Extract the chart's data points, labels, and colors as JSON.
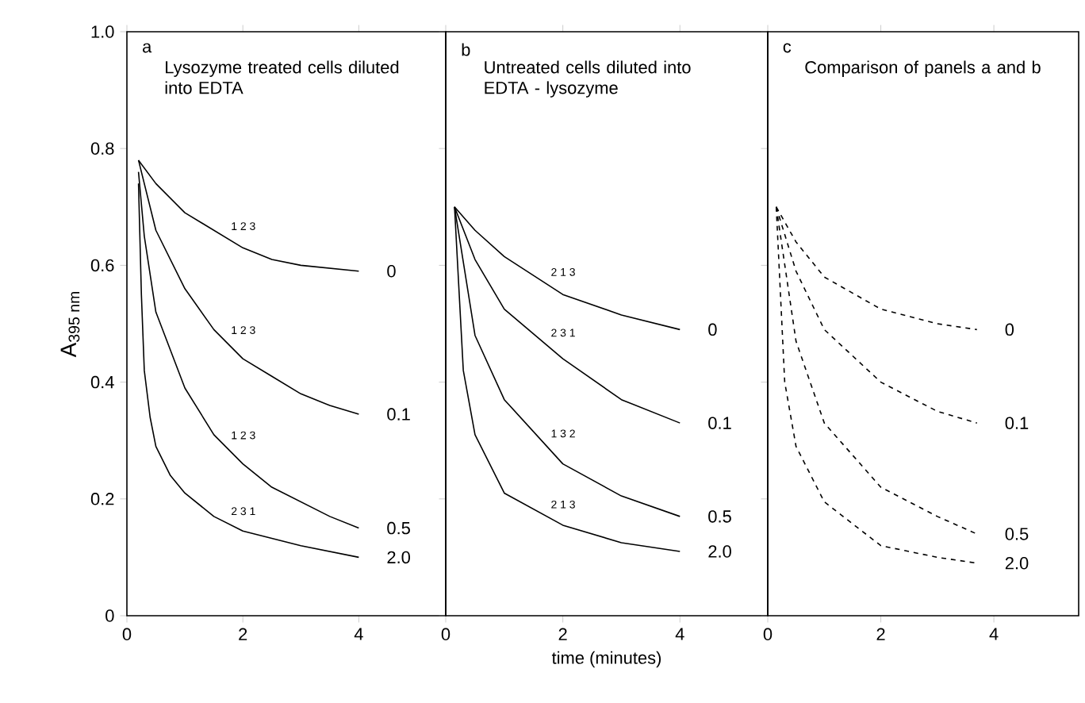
{
  "chart_data": [
    {
      "type": "line",
      "title": "a",
      "subtitle": "Lysozyme treated cells diluted into EDTA",
      "ylabel": "A$_{395 nm}$",
      "xlim": [
        0,
        5.5
      ],
      "ylim": [
        0,
        1.0
      ],
      "xticks": [
        0,
        2,
        4
      ],
      "yticks": [
        0,
        0.2,
        0.4,
        0.6,
        0.8,
        {
          "value": 1.0,
          "label": "1.0"
        }
      ],
      "line_style": "solid",
      "marker": "none",
      "series": [
        {
          "name": "0",
          "color": "#000000",
          "x": [
            0.2,
            0.5,
            1,
            1.5,
            2,
            2.5,
            3,
            4
          ],
          "values": [
            0.78,
            0.74,
            0.69,
            0.66,
            0.63,
            0.61,
            0.6,
            0.59
          ]
        },
        {
          "name": "0.1",
          "color": "#000000",
          "x": [
            0.2,
            0.5,
            1,
            1.5,
            2,
            2.5,
            3,
            3.5,
            4
          ],
          "values": [
            0.78,
            0.66,
            0.56,
            0.49,
            0.44,
            0.41,
            0.38,
            0.36,
            0.345
          ]
        },
        {
          "name": "0.5",
          "color": "#000000",
          "x": [
            0.2,
            0.3,
            0.5,
            1,
            1.5,
            2,
            2.5,
            3,
            3.5,
            4
          ],
          "values": [
            0.76,
            0.65,
            0.52,
            0.39,
            0.31,
            0.26,
            0.22,
            0.195,
            0.17,
            0.15
          ]
        },
        {
          "name": "2.0",
          "color": "#000000",
          "x": [
            0.2,
            0.25,
            0.3,
            0.4,
            0.5,
            0.75,
            1,
            1.5,
            2,
            3,
            4
          ],
          "values": [
            0.74,
            0.55,
            0.42,
            0.34,
            0.29,
            0.24,
            0.21,
            0.17,
            0.145,
            0.12,
            0.1
          ]
        }
      ],
      "annotations": [
        "1 2 3",
        "1 2 3",
        "1 2 3",
        "2 3 1"
      ]
    },
    {
      "type": "line",
      "title": "b",
      "subtitle": "Untreated cells diluted into EDTA - lysozyme",
      "xlabel": "time (minutes)",
      "xlim": [
        0,
        5.5
      ],
      "ylim": [
        0,
        1.0
      ],
      "xticks": [
        0,
        2,
        4
      ],
      "yticks": [
        0,
        0.2,
        0.4,
        0.6,
        0.8,
        1.0
      ],
      "tick_labels": "x",
      "line_style": "solid",
      "marker": "none",
      "series": [
        {
          "name": "0",
          "color": "#000000",
          "x": [
            0.15,
            0.5,
            1,
            2,
            3,
            4
          ],
          "values": [
            0.7,
            0.66,
            0.615,
            0.55,
            0.515,
            0.49
          ]
        },
        {
          "name": "0.1",
          "color": "#000000",
          "x": [
            0.15,
            0.5,
            1,
            2,
            3,
            4
          ],
          "values": [
            0.7,
            0.61,
            0.525,
            0.44,
            0.37,
            0.33
          ]
        },
        {
          "name": "0.5",
          "color": "#000000",
          "x": [
            0.15,
            0.5,
            1,
            2,
            3,
            4
          ],
          "values": [
            0.7,
            0.48,
            0.37,
            0.26,
            0.205,
            0.17
          ]
        },
        {
          "name": "2.0",
          "color": "#000000",
          "x": [
            0.15,
            0.3,
            0.5,
            1,
            2,
            3,
            4
          ],
          "values": [
            0.7,
            0.42,
            0.31,
            0.21,
            0.155,
            0.125,
            0.11
          ]
        }
      ],
      "annotations": [
        "2 1 3",
        "2 3 1",
        "1 3 2",
        "2 1 3"
      ]
    },
    {
      "type": "line",
      "title": "c",
      "subtitle": "Comparison of panels a and b",
      "xlim": [
        0,
        5.5
      ],
      "ylim": [
        0,
        1.0
      ],
      "xticks": [
        0,
        2,
        4
      ],
      "yticks": [
        0,
        0.2,
        0.4,
        0.6,
        0.8,
        1.0
      ],
      "tick_labels": "x",
      "line_style": "dashed",
      "marker": "none",
      "series": [
        {
          "name": "0",
          "color": "#000000",
          "x": [
            0.15,
            0.5,
            1,
            2,
            3,
            3.7
          ],
          "values": [
            0.7,
            0.64,
            0.58,
            0.525,
            0.5,
            0.49
          ]
        },
        {
          "name": "0.1",
          "color": "#000000",
          "x": [
            0.15,
            0.5,
            1,
            2,
            3,
            3.7
          ],
          "values": [
            0.7,
            0.59,
            0.49,
            0.4,
            0.35,
            0.33
          ]
        },
        {
          "name": "0.5",
          "color": "#000000",
          "x": [
            0.15,
            0.5,
            1,
            2,
            3,
            3.7
          ],
          "values": [
            0.7,
            0.47,
            0.33,
            0.22,
            0.17,
            0.14
          ]
        },
        {
          "name": "2.0",
          "color": "#000000",
          "x": [
            0.15,
            0.3,
            0.5,
            1,
            2,
            3,
            3.7
          ],
          "values": [
            0.7,
            0.4,
            0.29,
            0.195,
            0.12,
            0.1,
            0.09
          ]
        }
      ]
    }
  ]
}
